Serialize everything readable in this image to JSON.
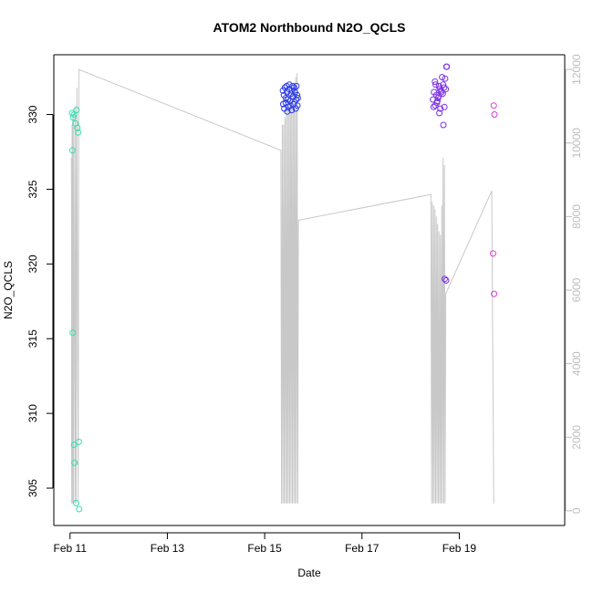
{
  "chart_data": {
    "type": "scatter",
    "title": "ATOM2 Northbound N2O_QCLS",
    "xlabel": "Date",
    "ylabel": "N2O_QCLS",
    "x_unit": "days",
    "xlim": [
      "2018-02-10 16:00",
      "2018-02-21 04:00"
    ],
    "x_ticks": [
      {
        "value": "2018-02-11",
        "label": "Feb 11"
      },
      {
        "value": "2018-02-13",
        "label": "Feb 13"
      },
      {
        "value": "2018-02-15",
        "label": "Feb 15"
      },
      {
        "value": "2018-02-17",
        "label": "Feb 17"
      },
      {
        "value": "2018-02-19",
        "label": "Feb 19"
      }
    ],
    "ylim": [
      302.5,
      334.0
    ],
    "y_ticks": [
      305,
      310,
      315,
      320,
      325,
      330
    ],
    "y2lim": [
      -400,
      12400
    ],
    "y2_ticks": [
      0,
      2000,
      4000,
      6000,
      8000,
      10000,
      12000
    ],
    "legend": "none",
    "grid": false,
    "point_series": [
      {
        "color": "#33e0b0",
        "points": [
          [
            "2018-02-11 01:00",
            330.1
          ],
          [
            "2018-02-11 01:30",
            329.8
          ],
          [
            "2018-02-11 01:12",
            327.6
          ],
          [
            "2018-02-11 02:00",
            330.0
          ],
          [
            "2018-02-11 02:40",
            329.4
          ],
          [
            "2018-02-11 03:10",
            330.3
          ],
          [
            "2018-02-11 03:40",
            329.1
          ],
          [
            "2018-02-11 04:00",
            328.8
          ],
          [
            "2018-02-11 01:20",
            315.4
          ],
          [
            "2018-02-11 02:00",
            307.9
          ],
          [
            "2018-02-11 02:10",
            306.7
          ],
          [
            "2018-02-11 04:20",
            308.1
          ],
          [
            "2018-02-11 03:00",
            304.0
          ],
          [
            "2018-02-11 04:30",
            303.6
          ]
        ]
      },
      {
        "color": "#2a3ae8",
        "points": [
          [
            "2018-02-15 09:00",
            331.6
          ],
          [
            "2018-02-15 09:30",
            331.3
          ],
          [
            "2018-02-15 10:00",
            331.8
          ],
          [
            "2018-02-15 10:30",
            331.1
          ],
          [
            "2018-02-15 11:00",
            331.5
          ],
          [
            "2018-02-15 11:30",
            331.0
          ],
          [
            "2018-02-15 12:00",
            331.7
          ],
          [
            "2018-02-15 12:30",
            330.9
          ],
          [
            "2018-02-15 13:00",
            331.4
          ],
          [
            "2018-02-15 13:30",
            331.6
          ],
          [
            "2018-02-15 14:00",
            331.2
          ],
          [
            "2018-02-15 14:30",
            331.8
          ],
          [
            "2018-02-15 15:00",
            331.5
          ],
          [
            "2018-02-15 15:30",
            331.0
          ],
          [
            "2018-02-15 16:00",
            331.3
          ],
          [
            "2018-02-15 09:10",
            330.7
          ],
          [
            "2018-02-15 09:40",
            330.4
          ],
          [
            "2018-02-15 10:20",
            330.8
          ],
          [
            "2018-02-15 11:40",
            330.5
          ],
          [
            "2018-02-15 12:40",
            330.6
          ],
          [
            "2018-02-15 13:20",
            330.3
          ],
          [
            "2018-02-15 14:20",
            330.7
          ],
          [
            "2018-02-15 15:20",
            330.4
          ],
          [
            "2018-02-15 16:10",
            330.6
          ],
          [
            "2018-02-15 10:50",
            331.9
          ],
          [
            "2018-02-15 12:10",
            332.0
          ],
          [
            "2018-02-15 13:50",
            331.9
          ],
          [
            "2018-02-15 15:40",
            331.9
          ],
          [
            "2018-02-15 16:20",
            331.1
          ],
          [
            "2018-02-15 11:10",
            330.2
          ]
        ]
      },
      {
        "color": "#7a2ee6",
        "points": [
          [
            "2018-02-18 11:00",
            331.0
          ],
          [
            "2018-02-18 11:30",
            331.5
          ],
          [
            "2018-02-18 12:00",
            332.2
          ],
          [
            "2018-02-18 12:20",
            332.0
          ],
          [
            "2018-02-18 12:40",
            331.3
          ],
          [
            "2018-02-18 13:00",
            330.8
          ],
          [
            "2018-02-18 13:30",
            331.1
          ],
          [
            "2018-02-18 14:00",
            331.9
          ],
          [
            "2018-02-18 14:20",
            331.7
          ],
          [
            "2018-02-18 14:40",
            330.4
          ],
          [
            "2018-02-18 15:00",
            331.6
          ],
          [
            "2018-02-18 15:30",
            332.5
          ],
          [
            "2018-02-18 16:00",
            332.0
          ],
          [
            "2018-02-18 16:30",
            331.8
          ],
          [
            "2018-02-18 17:00",
            332.4
          ],
          [
            "2018-02-18 11:20",
            330.5
          ],
          [
            "2018-02-18 12:10",
            330.6
          ],
          [
            "2018-02-18 13:10",
            330.9
          ],
          [
            "2018-02-18 13:50",
            331.2
          ],
          [
            "2018-02-18 14:10",
            330.1
          ],
          [
            "2018-02-18 15:10",
            331.5
          ],
          [
            "2018-02-18 15:50",
            331.4
          ],
          [
            "2018-02-18 16:10",
            329.3
          ],
          [
            "2018-02-18 16:40",
            330.5
          ],
          [
            "2018-02-18 17:20",
            331.7
          ],
          [
            "2018-02-18 17:40",
            333.2
          ],
          [
            "2018-02-18 17:50",
            333.2
          ],
          [
            "2018-02-18 16:50",
            319.0
          ],
          [
            "2018-02-18 17:30",
            318.9
          ]
        ]
      },
      {
        "color": "#d63bd6",
        "points": [
          [
            "2018-02-19 17:00",
            330.6
          ],
          [
            "2018-02-19 17:20",
            330.0
          ],
          [
            "2018-02-19 16:40",
            320.7
          ],
          [
            "2018-02-19 17:10",
            318.0
          ]
        ]
      }
    ],
    "line_series": {
      "color": "#c8c8c8",
      "axis": "right",
      "points": [
        [
          "2018-02-11 00:40",
          9600
        ],
        [
          "2018-02-11 00:50",
          200
        ],
        [
          "2018-02-11 01:00",
          10500
        ],
        [
          "2018-02-11 01:10",
          200
        ],
        [
          "2018-02-11 01:20",
          10700
        ],
        [
          "2018-02-11 01:40",
          200
        ],
        [
          "2018-02-11 01:50",
          10900
        ],
        [
          "2018-02-11 02:30",
          200
        ],
        [
          "2018-02-11 02:40",
          11000
        ],
        [
          "2018-02-11 03:00",
          200
        ],
        [
          "2018-02-11 03:20",
          11500
        ],
        [
          "2018-02-11 04:00",
          200
        ],
        [
          "2018-02-11 04:20",
          12000
        ],
        [
          "2018-02-15 08:00",
          9800
        ],
        [
          "2018-02-15 08:20",
          200
        ],
        [
          "2018-02-15 08:40",
          10500
        ],
        [
          "2018-02-15 09:00",
          200
        ],
        [
          "2018-02-15 09:20",
          10500
        ],
        [
          "2018-02-15 09:40",
          200
        ],
        [
          "2018-02-15 10:00",
          10700
        ],
        [
          "2018-02-15 10:20",
          200
        ],
        [
          "2018-02-15 10:40",
          10900
        ],
        [
          "2018-02-15 11:00",
          200
        ],
        [
          "2018-02-15 11:20",
          11000
        ],
        [
          "2018-02-15 11:40",
          200
        ],
        [
          "2018-02-15 12:00",
          11200
        ],
        [
          "2018-02-15 12:20",
          200
        ],
        [
          "2018-02-15 12:40",
          11300
        ],
        [
          "2018-02-15 13:00",
          200
        ],
        [
          "2018-02-15 13:20",
          11400
        ],
        [
          "2018-02-15 13:40",
          200
        ],
        [
          "2018-02-15 14:00",
          11500
        ],
        [
          "2018-02-15 14:20",
          200
        ],
        [
          "2018-02-15 14:40",
          11600
        ],
        [
          "2018-02-15 15:00",
          200
        ],
        [
          "2018-02-15 15:20",
          11800
        ],
        [
          "2018-02-15 15:40",
          200
        ],
        [
          "2018-02-15 16:00",
          11900
        ],
        [
          "2018-02-15 16:20",
          200
        ],
        [
          "2018-02-15 16:40",
          7900
        ],
        [
          "2018-02-18 10:00",
          8600
        ],
        [
          "2018-02-18 10:20",
          200
        ],
        [
          "2018-02-18 10:40",
          8400
        ],
        [
          "2018-02-18 11:00",
          200
        ],
        [
          "2018-02-18 11:20",
          8300
        ],
        [
          "2018-02-18 11:40",
          200
        ],
        [
          "2018-02-18 12:00",
          8200
        ],
        [
          "2018-02-18 12:20",
          200
        ],
        [
          "2018-02-18 12:40",
          8000
        ],
        [
          "2018-02-18 13:00",
          200
        ],
        [
          "2018-02-18 13:20",
          7800
        ],
        [
          "2018-02-18 13:40",
          200
        ],
        [
          "2018-02-18 14:00",
          7600
        ],
        [
          "2018-02-18 14:20",
          200
        ],
        [
          "2018-02-18 14:40",
          7500
        ],
        [
          "2018-02-18 15:00",
          200
        ],
        [
          "2018-02-18 15:20",
          8300
        ],
        [
          "2018-02-18 15:40",
          200
        ],
        [
          "2018-02-18 16:00",
          9600
        ],
        [
          "2018-02-18 16:20",
          200
        ],
        [
          "2018-02-18 16:40",
          9400
        ],
        [
          "2018-02-18 17:00",
          200
        ],
        [
          "2018-02-18 17:20",
          5900
        ],
        [
          "2018-02-19 16:00",
          8700
        ],
        [
          "2018-02-19 17:00",
          200
        ]
      ]
    }
  }
}
